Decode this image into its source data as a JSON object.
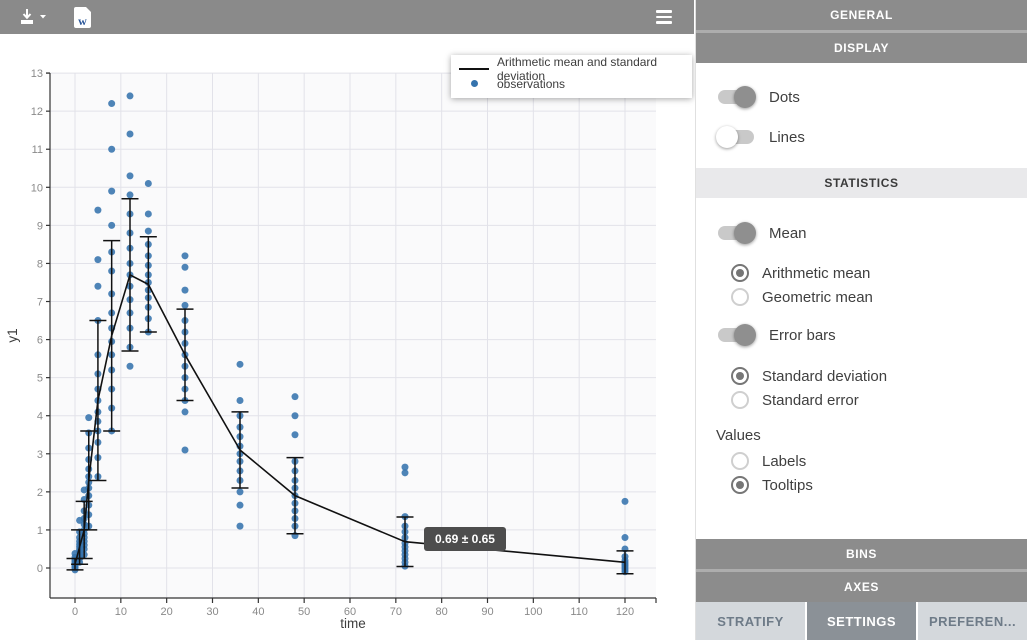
{
  "toolbar": {
    "download_tooltip": "export",
    "word_letter": "w"
  },
  "legend": {
    "items": [
      {
        "swatch": "mean-line",
        "label": "Arithmetic mean and standard deviation"
      },
      {
        "swatch": "observation-dot",
        "label": "observations"
      }
    ]
  },
  "panel": {
    "sections": {
      "general": "GENERAL",
      "display": "DISPLAY",
      "statistics": "STATISTICS",
      "bins": "BINS",
      "axes": "AXES"
    },
    "display": {
      "dots": {
        "label": "Dots",
        "on": true
      },
      "lines": {
        "label": "Lines",
        "on": false
      }
    },
    "statistics": {
      "mean": {
        "label": "Mean",
        "on": true
      },
      "mean_type": [
        {
          "label": "Arithmetic mean",
          "selected": true
        },
        {
          "label": "Geometric mean",
          "selected": false
        }
      ],
      "error_bars": {
        "label": "Error bars",
        "on": true
      },
      "error_type": [
        {
          "label": "Standard deviation",
          "selected": true
        },
        {
          "label": "Standard error",
          "selected": false
        }
      ],
      "values_label": "Values",
      "values": [
        {
          "label": "Labels",
          "selected": false
        },
        {
          "label": "Tooltips",
          "selected": true
        }
      ]
    },
    "tabs": [
      {
        "label": "STRATIFY",
        "active": false
      },
      {
        "label": "SETTINGS",
        "active": true
      },
      {
        "label": "PREFEREN...",
        "active": false
      }
    ]
  },
  "colors": {
    "toolbar_bg": "#8a8a8a",
    "header_dark_bg": "#8c8c8c",
    "header_light_bg": "#e9e9eb",
    "tab_bg": "#d4d8dc",
    "tab_active_bg": "#8b9197",
    "word_blue": "#2b579a",
    "tooltip_bg": "#4d4d4d"
  },
  "chart_data": {
    "type": "scatter",
    "title": "",
    "xlabel": "time",
    "ylabel": "y1",
    "xlim": [
      -5.5,
      126.8
    ],
    "ylim": [
      -0.8,
      13
    ],
    "xticks": [
      0,
      10,
      20,
      30,
      40,
      50,
      60,
      70,
      80,
      90,
      100,
      110,
      120
    ],
    "yticks": [
      0,
      1,
      2,
      3,
      4,
      5,
      6,
      7,
      8,
      9,
      10,
      11,
      12,
      13
    ],
    "grid": true,
    "legend_position": "top-right",
    "tooltip": {
      "time": 72,
      "text": "0.69 ± 0.65"
    },
    "colors": {
      "dots": "#3573ad",
      "line": "#111111",
      "plot_bg": "#fafafb",
      "grid": "#e2e2e9",
      "axis": "#333333",
      "tick_text": "#8a8a8a",
      "axis_label_text": "#3d3d3d"
    },
    "series": [
      {
        "name": "Arithmetic mean and standard deviation",
        "type": "line+errorbar",
        "times": [
          0,
          1,
          2,
          3,
          5,
          8,
          12,
          16,
          24,
          36,
          48,
          72,
          120
        ],
        "means": [
          0.1,
          0.55,
          1.0,
          2.3,
          4.4,
          6.1,
          7.7,
          7.45,
          5.6,
          3.1,
          1.9,
          0.69,
          0.15
        ],
        "sds": [
          0.15,
          0.45,
          0.75,
          1.3,
          2.1,
          2.5,
          2.0,
          1.25,
          1.2,
          1.0,
          1.0,
          0.65,
          0.3
        ]
      },
      {
        "name": "observations",
        "type": "scatter",
        "points": [
          {
            "t": 0,
            "y": [
              -0.05,
              0.0,
              0.03,
              0.05,
              0.08,
              0.1,
              0.12,
              0.15,
              0.18,
              0.22,
              0.28,
              0.38
            ]
          },
          {
            "t": 1,
            "y": [
              0.15,
              0.25,
              0.3,
              0.35,
              0.42,
              0.48,
              0.55,
              0.62,
              0.7,
              0.8,
              0.95,
              1.25
            ]
          },
          {
            "t": 2,
            "y": [
              0.35,
              0.5,
              0.6,
              0.7,
              0.8,
              0.9,
              1.0,
              1.15,
              1.3,
              1.5,
              1.8,
              2.05
            ]
          },
          {
            "t": 3,
            "y": [
              1.1,
              1.4,
              1.65,
              1.9,
              2.1,
              2.25,
              2.4,
              2.6,
              2.85,
              3.15,
              3.55,
              3.95
            ]
          },
          {
            "t": 5,
            "y": [
              2.4,
              2.9,
              3.3,
              3.6,
              3.85,
              4.1,
              4.4,
              4.7,
              5.1,
              5.6,
              6.5,
              7.4,
              8.1,
              9.4
            ]
          },
          {
            "t": 8,
            "y": [
              3.6,
              4.2,
              4.7,
              5.2,
              5.6,
              5.95,
              6.3,
              6.7,
              7.2,
              7.8,
              8.3,
              9.0,
              9.9,
              11.0,
              12.2
            ]
          },
          {
            "t": 12,
            "y": [
              5.3,
              5.8,
              6.3,
              6.7,
              7.05,
              7.4,
              7.7,
              8.0,
              8.4,
              8.8,
              9.3,
              9.8,
              10.3,
              11.4,
              12.4
            ]
          },
          {
            "t": 16,
            "y": [
              6.2,
              6.55,
              6.85,
              7.1,
              7.3,
              7.5,
              7.7,
              7.95,
              8.2,
              8.5,
              8.85,
              9.3,
              10.1
            ]
          },
          {
            "t": 24,
            "y": [
              3.1,
              4.1,
              4.4,
              4.7,
              5.0,
              5.3,
              5.6,
              5.9,
              6.2,
              6.5,
              6.9,
              7.3,
              7.9,
              8.2
            ]
          },
          {
            "t": 36,
            "y": [
              1.1,
              1.65,
              2.0,
              2.3,
              2.55,
              2.8,
              3.0,
              3.2,
              3.45,
              3.7,
              4.0,
              4.4,
              5.35
            ]
          },
          {
            "t": 48,
            "y": [
              0.85,
              1.1,
              1.3,
              1.5,
              1.7,
              1.9,
              2.1,
              2.3,
              2.55,
              2.8,
              3.5,
              4.0,
              4.5
            ]
          },
          {
            "t": 72,
            "y": [
              0.05,
              0.15,
              0.25,
              0.35,
              0.45,
              0.55,
              0.65,
              0.8,
              0.95,
              1.1,
              1.35,
              2.5,
              2.65
            ]
          },
          {
            "t": 120,
            "y": [
              -0.1,
              -0.05,
              0.0,
              0.05,
              0.1,
              0.15,
              0.2,
              0.3,
              0.5,
              0.8,
              1.75
            ]
          }
        ]
      }
    ]
  }
}
